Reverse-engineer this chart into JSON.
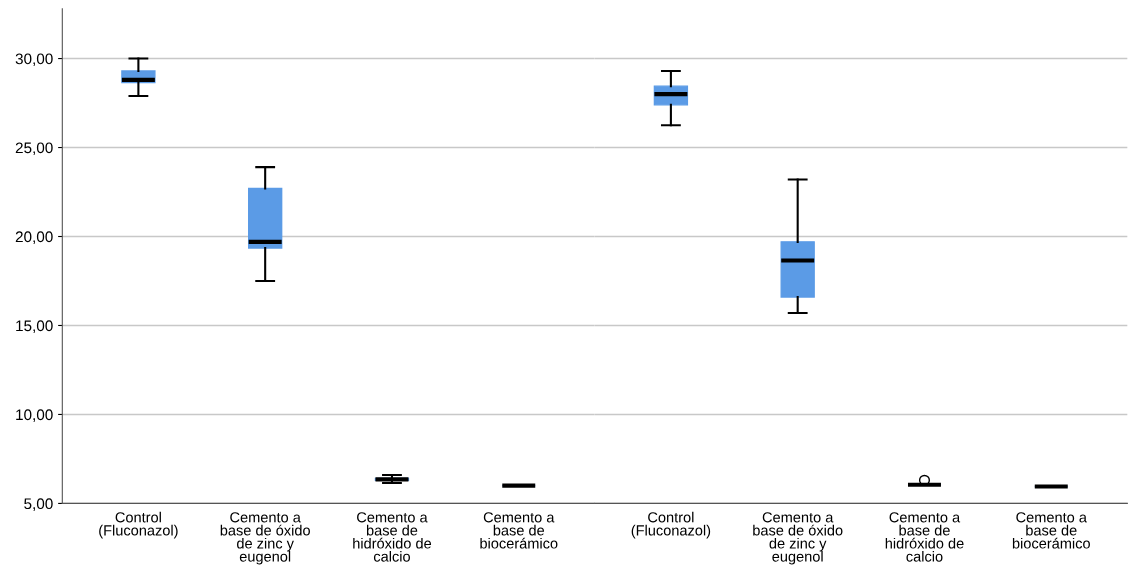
{
  "chart_data": [
    {
      "type": "box",
      "categories": [
        "Control\n(Fluconazol)",
        "Cemento a\nbase de óxido\nde zinc y\neugenol",
        "Cemento a\nbase de\nhidróxido de\ncalcio",
        "Cemento a\nbase de\nbiocerámico"
      ],
      "color": "#5b9be6",
      "ylim": [
        5,
        32.8
      ],
      "yticks": [
        {
          "value": 5,
          "label": "5,00"
        },
        {
          "value": 10,
          "label": "10,00"
        },
        {
          "value": 15,
          "label": "15,00"
        },
        {
          "value": 20,
          "label": "20,00"
        },
        {
          "value": 25,
          "label": "25,00"
        },
        {
          "value": 30,
          "label": "30,00"
        }
      ],
      "grid": "y",
      "boxes": [
        {
          "low": 27.9,
          "q1": 28.65,
          "median": 28.8,
          "q3": 29.3,
          "high": 30.0
        },
        {
          "low": 17.5,
          "q1": 19.35,
          "median": 19.7,
          "q3": 22.7,
          "high": 23.9
        },
        {
          "low": 6.15,
          "q1": 6.3,
          "median": 6.35,
          "q3": 6.4,
          "high": 6.6
        },
        {
          "low": 6.0,
          "q1": 6.0,
          "median": 6.0,
          "q3": 6.0,
          "high": 6.0
        }
      ]
    },
    {
      "type": "box",
      "categories": [
        "Control\n(Fluconazol)",
        "Cemento a\nbase de óxido\nde zinc y\neugenol",
        "Cemento a\nbase de\nhidróxido de\ncalcio",
        "Cemento a\nbase de\nbiocerámico"
      ],
      "color": "#5b9be6",
      "ylim": [
        5,
        32.8
      ],
      "yticks": [
        {
          "value": 5,
          "label": null
        },
        {
          "value": 10,
          "label": null
        },
        {
          "value": 15,
          "label": null
        },
        {
          "value": 20,
          "label": null
        },
        {
          "value": 25,
          "label": null
        },
        {
          "value": 30,
          "label": null
        }
      ],
      "grid": "y",
      "tick_labels": "x",
      "boxes": [
        {
          "low": 26.25,
          "q1": 27.4,
          "median": 28.0,
          "q3": 28.45,
          "high": 29.3
        },
        {
          "low": 15.7,
          "q1": 16.6,
          "median": 18.65,
          "q3": 19.7,
          "high": 23.2
        },
        {
          "low": 6.05,
          "q1": 6.05,
          "median": 6.05,
          "q3": 6.05,
          "high": 6.05,
          "outliers": [
            6.3
          ]
        },
        {
          "low": 5.95,
          "q1": 5.95,
          "median": 5.95,
          "q3": 5.95,
          "high": 5.95
        }
      ]
    }
  ]
}
